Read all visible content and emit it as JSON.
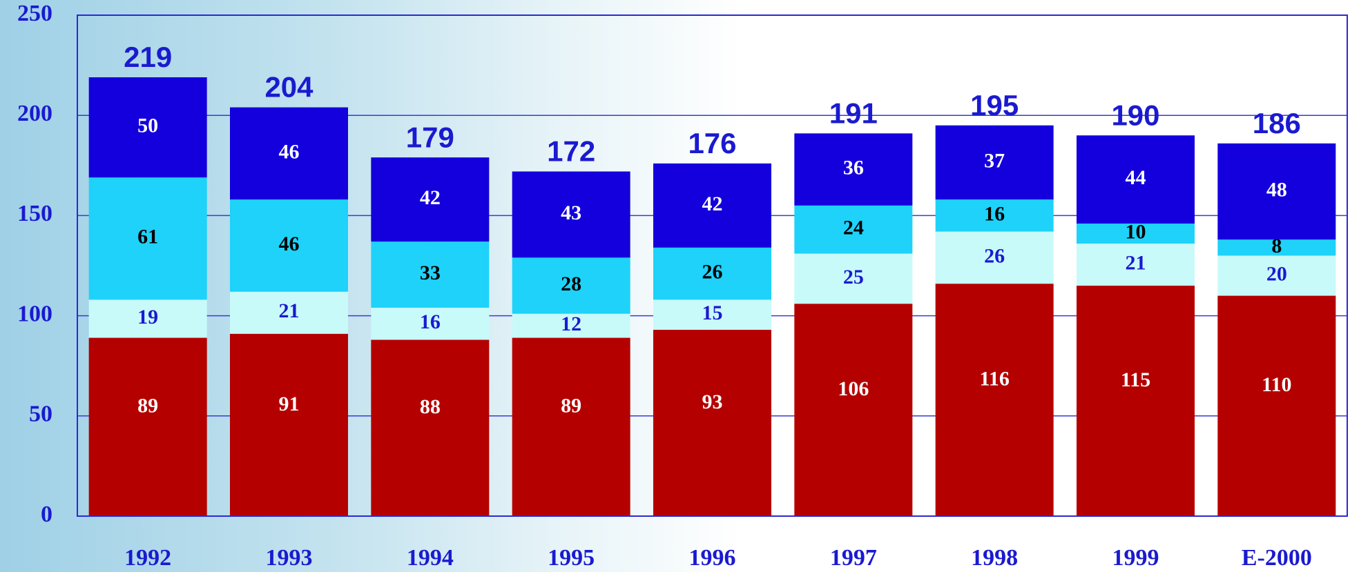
{
  "chart_data": {
    "type": "stacked-bar",
    "categories": [
      "1992",
      "1993",
      "1994",
      "1995",
      "1996",
      "1997",
      "1998",
      "1999",
      "E-2000"
    ],
    "series": [
      {
        "color": "#b50000",
        "label_color": "#ffffff",
        "values": [
          89,
          91,
          88,
          89,
          93,
          106,
          116,
          115,
          110
        ]
      },
      {
        "color": "#c8fafa",
        "label_color": "#1a1ad0",
        "values": [
          19,
          21,
          16,
          12,
          15,
          25,
          26,
          21,
          20
        ]
      },
      {
        "color": "#1ed2fa",
        "label_color": "#000000",
        "values": [
          61,
          46,
          33,
          28,
          26,
          24,
          16,
          10,
          8
        ]
      },
      {
        "color": "#1400dc",
        "label_color": "#ffffff",
        "values": [
          50,
          46,
          42,
          43,
          42,
          36,
          37,
          44,
          48
        ]
      }
    ],
    "totals": [
      219,
      204,
      179,
      172,
      176,
      191,
      195,
      190,
      186
    ],
    "totals_color": "#1a1ad0",
    "ylim": [
      0,
      250
    ],
    "yticks": [
      0,
      50,
      100,
      150,
      200,
      250
    ],
    "grid": true
  }
}
